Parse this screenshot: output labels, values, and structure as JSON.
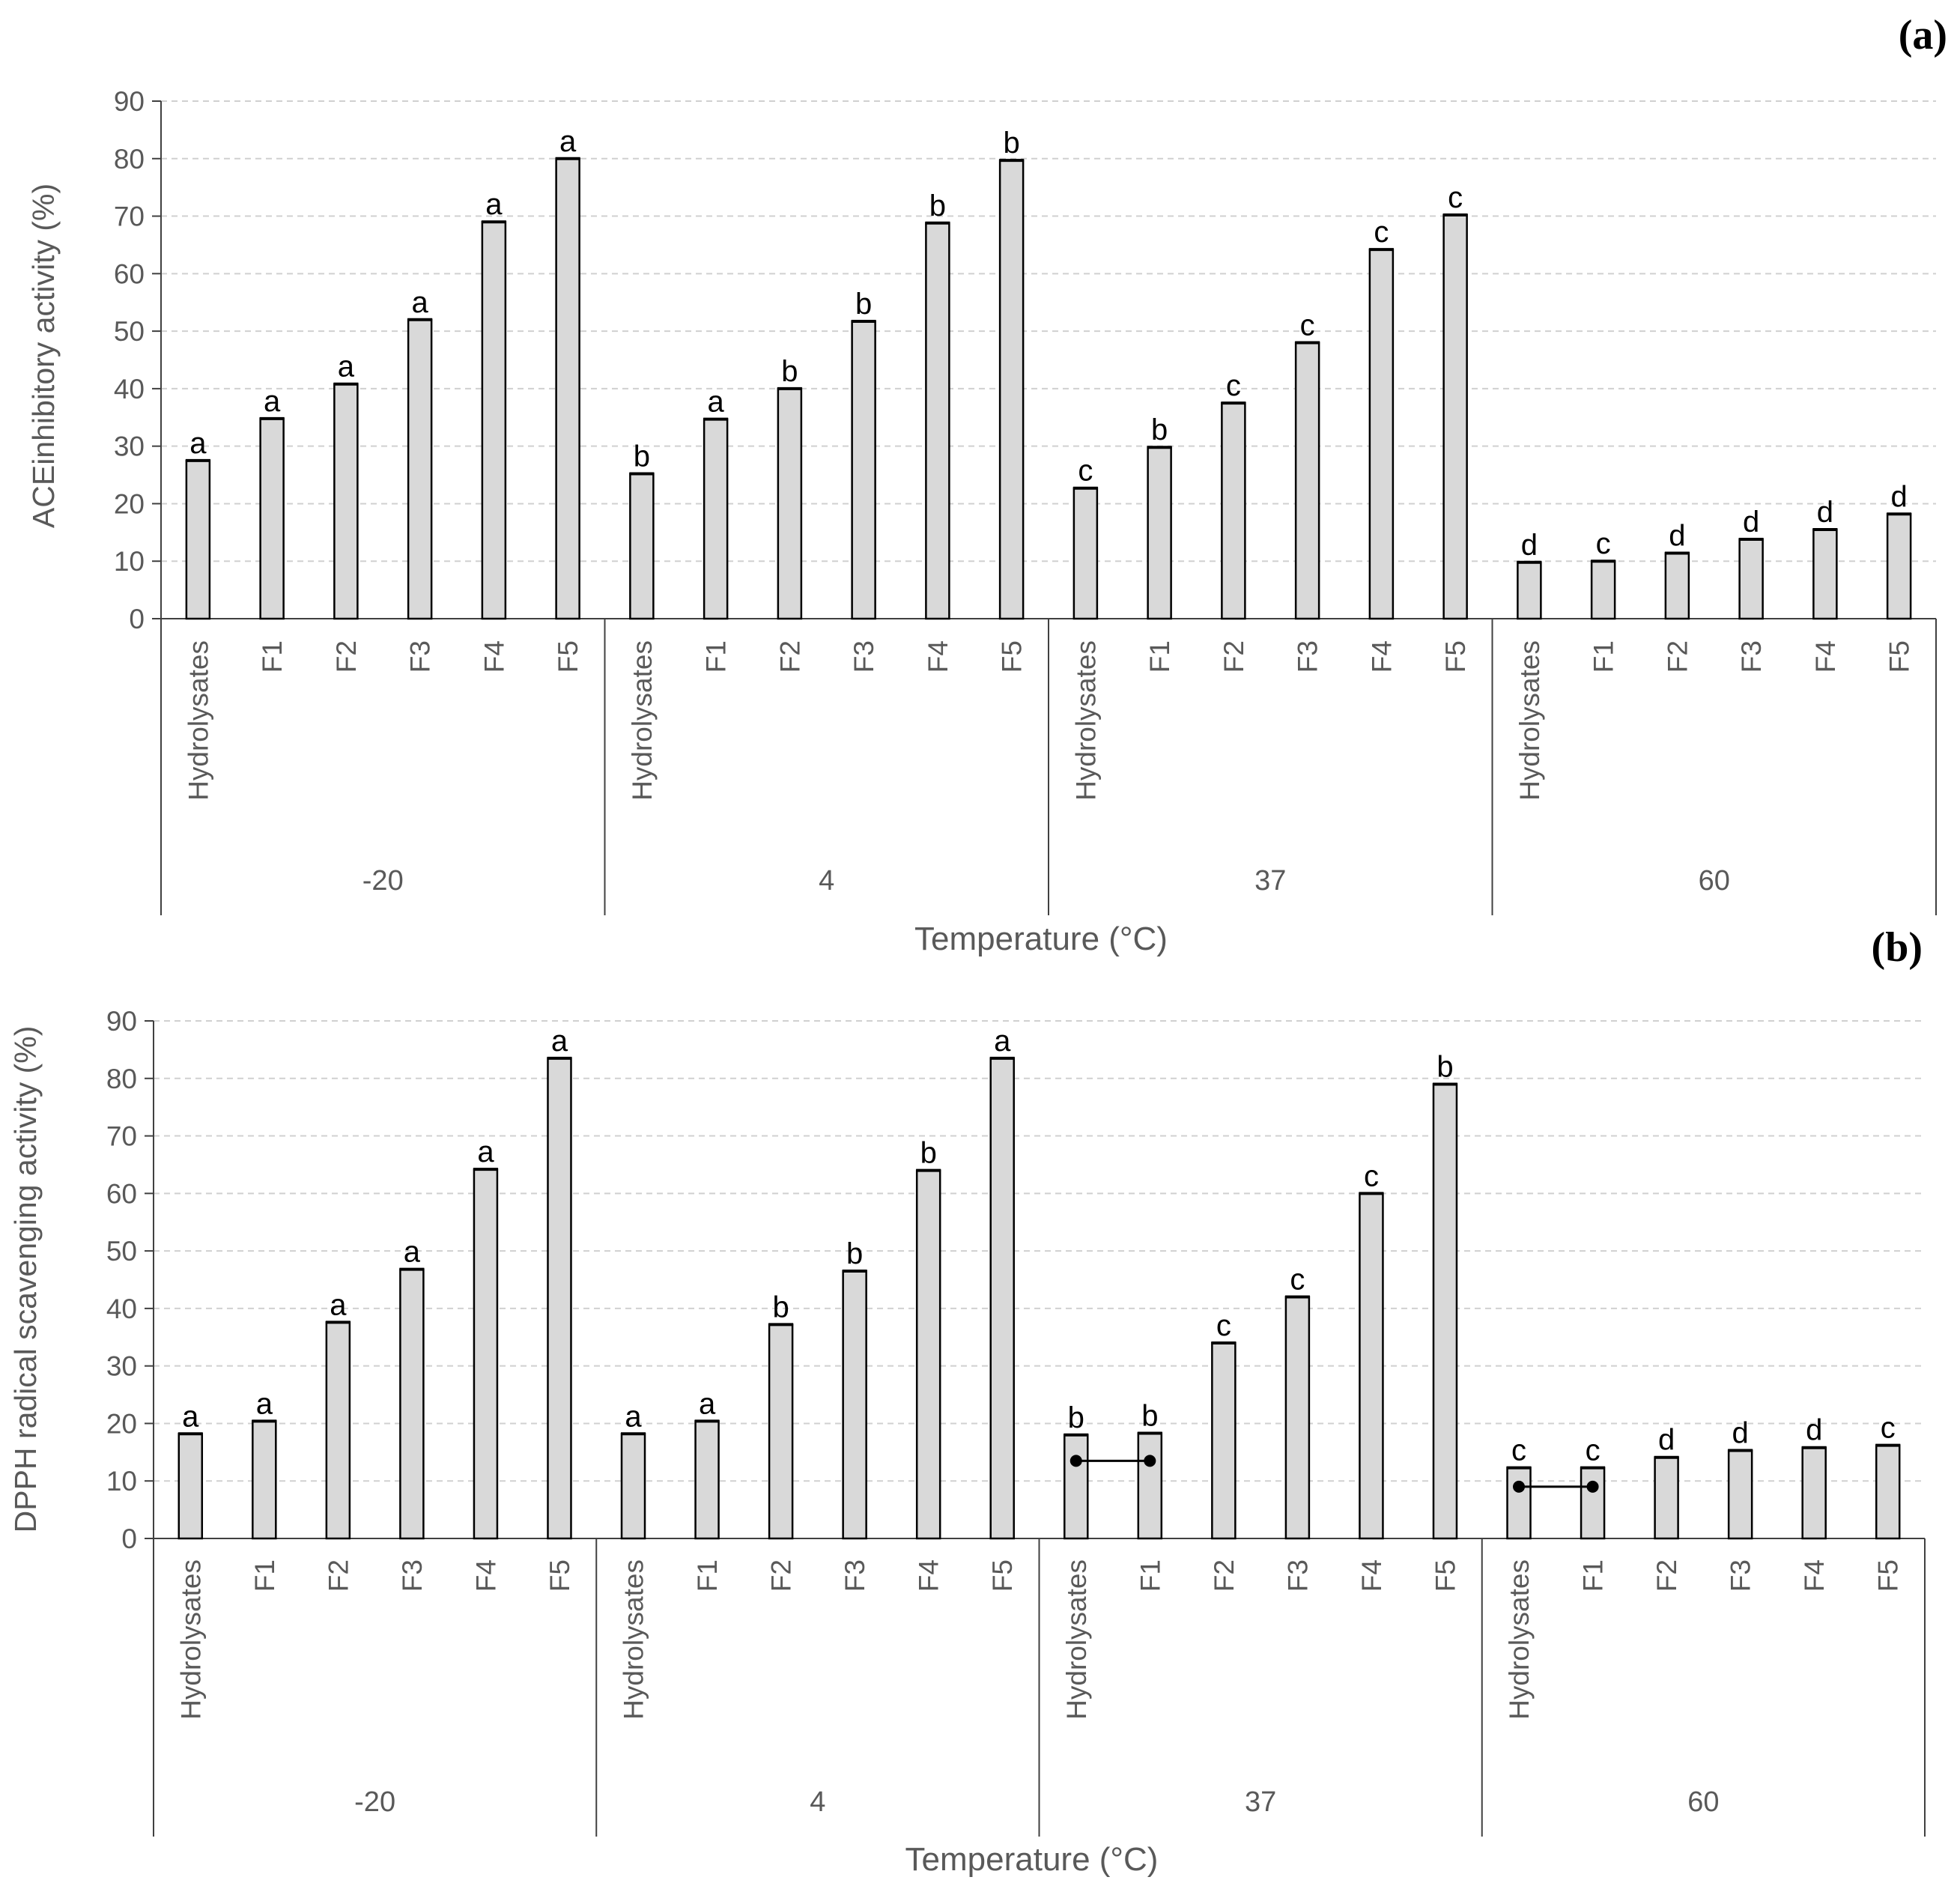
{
  "chart_data": [
    {
      "type": "bar",
      "panel_label": "(a)",
      "ylabel": "ACEinhibitory activity (%)",
      "xlabel": "Temperature (°C)",
      "ylim": [
        0,
        90
      ],
      "yticks": [
        "0",
        "10",
        "20",
        "30",
        "40",
        "50",
        "60",
        "70",
        "80",
        "90"
      ],
      "grid": true,
      "categories": [
        "Hydrolysates",
        "F1",
        "F2",
        "F3",
        "F4",
        "F5"
      ],
      "groups": [
        {
          "name": "-20",
          "values": [
            27.5,
            34.8,
            40.8,
            52.0,
            69.0,
            80.0
          ],
          "letters": [
            "a",
            "a",
            "a",
            "a",
            "a",
            "a"
          ]
        },
        {
          "name": "4",
          "values": [
            25.2,
            34.7,
            40.0,
            51.7,
            68.8,
            79.7
          ],
          "letters": [
            "b",
            "a",
            "b",
            "b",
            "b",
            "b"
          ]
        },
        {
          "name": "37",
          "values": [
            22.7,
            29.8,
            37.5,
            48.0,
            64.2,
            70.2
          ],
          "letters": [
            "c",
            "b",
            "c",
            "c",
            "c",
            "c"
          ]
        },
        {
          "name": "60",
          "values": [
            9.8,
            10.0,
            11.4,
            13.8,
            15.5,
            18.2
          ],
          "letters": [
            "d",
            "c",
            "d",
            "d",
            "d",
            "d"
          ]
        }
      ],
      "connectors": []
    },
    {
      "type": "bar",
      "panel_label": "(b)",
      "ylabel": "DPPH radical scavenging activity (%)",
      "xlabel": "Temperature (°C)",
      "ylim": [
        0,
        90
      ],
      "yticks": [
        "0",
        "10",
        "20",
        "30",
        "40",
        "50",
        "60",
        "70",
        "80",
        "90"
      ],
      "grid": true,
      "categories": [
        "Hydrolysates",
        "F1",
        "F2",
        "F3",
        "F4",
        "F5"
      ],
      "groups": [
        {
          "name": "-20",
          "values": [
            18.2,
            20.4,
            37.6,
            46.8,
            64.2,
            83.5
          ],
          "letters": [
            "a",
            "a",
            "a",
            "a",
            "a",
            "a"
          ]
        },
        {
          "name": "4",
          "values": [
            18.2,
            20.4,
            37.2,
            46.5,
            64.0,
            83.5
          ],
          "letters": [
            "a",
            "a",
            "b",
            "b",
            "b",
            "a"
          ]
        },
        {
          "name": "37",
          "values": [
            18.0,
            18.3,
            34.0,
            42.0,
            60.0,
            79.0
          ],
          "letters": [
            "b",
            "b",
            "c",
            "c",
            "c",
            "b"
          ]
        },
        {
          "name": "60",
          "values": [
            12.3,
            12.3,
            14.1,
            15.3,
            15.8,
            16.2
          ],
          "letters": [
            "c",
            "c",
            "d",
            "d",
            "d",
            "c"
          ]
        }
      ],
      "connectors": [
        {
          "group": 2,
          "from": 0,
          "to": 1,
          "y": 13.5
        },
        {
          "group": 3,
          "from": 0,
          "to": 1,
          "y": 9.0
        }
      ]
    }
  ]
}
